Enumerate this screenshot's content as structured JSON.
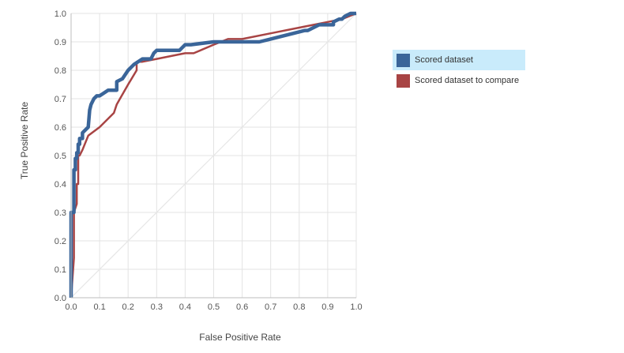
{
  "chart_data": {
    "type": "line",
    "xlabel": "False Positive Rate",
    "ylabel": "True Positive Rate",
    "xlim": [
      0,
      1
    ],
    "ylim": [
      0,
      1
    ],
    "grid": true,
    "legend_position": "right",
    "x_ticks": [
      "0.0",
      "0.1",
      "0.2",
      "0.3",
      "0.4",
      "0.5",
      "0.6",
      "0.7",
      "0.8",
      "0.9",
      "1.0"
    ],
    "y_ticks": [
      "0.0",
      "0.1",
      "0.2",
      "0.3",
      "0.4",
      "0.5",
      "0.6",
      "0.7",
      "0.8",
      "0.9",
      "1.0"
    ],
    "reference_line": {
      "x": [
        0,
        1
      ],
      "y": [
        0,
        1
      ],
      "color": "#e6e6e6"
    },
    "series": [
      {
        "name": "Scored dataset",
        "color": "#3a6599",
        "selected": true,
        "x": [
          0,
          0,
          0.01,
          0.01,
          0.015,
          0.015,
          0.02,
          0.02,
          0.025,
          0.025,
          0.03,
          0.03,
          0.04,
          0.04,
          0.05,
          0.06,
          0.065,
          0.07,
          0.08,
          0.09,
          0.1,
          0.13,
          0.16,
          0.16,
          0.18,
          0.2,
          0.22,
          0.22,
          0.25,
          0.28,
          0.29,
          0.3,
          0.38,
          0.39,
          0.4,
          0.42,
          0.5,
          0.66,
          0.7,
          0.74,
          0.78,
          0.82,
          0.83,
          0.85,
          0.87,
          0.88,
          0.9,
          0.92,
          0.92,
          0.94,
          0.95,
          0.96,
          0.98,
          1.0
        ],
        "y": [
          0,
          0.3,
          0.3,
          0.45,
          0.45,
          0.49,
          0.49,
          0.51,
          0.51,
          0.54,
          0.54,
          0.56,
          0.56,
          0.58,
          0.59,
          0.6,
          0.66,
          0.68,
          0.7,
          0.71,
          0.71,
          0.73,
          0.73,
          0.76,
          0.77,
          0.8,
          0.82,
          0.82,
          0.84,
          0.84,
          0.86,
          0.87,
          0.87,
          0.88,
          0.89,
          0.89,
          0.9,
          0.9,
          0.91,
          0.92,
          0.93,
          0.94,
          0.94,
          0.95,
          0.96,
          0.96,
          0.96,
          0.96,
          0.97,
          0.98,
          0.98,
          0.99,
          1.0,
          1.0
        ]
      },
      {
        "name": "Scored dataset to compare",
        "color": "#a84444",
        "selected": false,
        "x": [
          0,
          0.01,
          0.01,
          0.02,
          0.02,
          0.025,
          0.025,
          0.03,
          0.04,
          0.06,
          0.1,
          0.15,
          0.16,
          0.2,
          0.23,
          0.23,
          0.25,
          0.3,
          0.35,
          0.4,
          0.43,
          0.5,
          0.55,
          0.6,
          0.7,
          0.8,
          0.9,
          0.95,
          1.0
        ],
        "y": [
          0,
          0.14,
          0.3,
          0.33,
          0.4,
          0.4,
          0.5,
          0.5,
          0.52,
          0.57,
          0.6,
          0.65,
          0.68,
          0.75,
          0.8,
          0.83,
          0.83,
          0.84,
          0.85,
          0.86,
          0.86,
          0.89,
          0.91,
          0.91,
          0.93,
          0.95,
          0.97,
          0.98,
          1.0
        ]
      }
    ]
  }
}
